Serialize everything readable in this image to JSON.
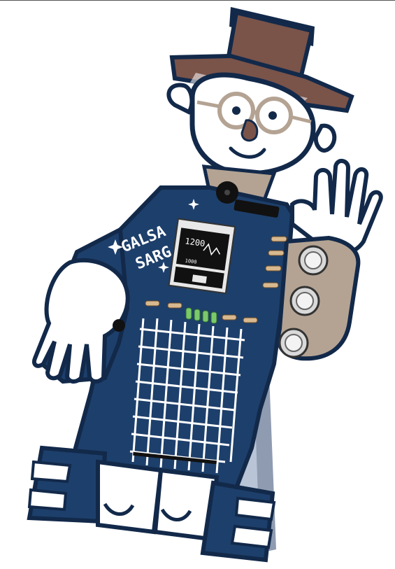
{
  "board": {
    "silkscreen_line1": "GALSA",
    "silkscreen_line2": "SARG",
    "oled_text": "1200",
    "oled_subtext": "1000"
  },
  "colors": {
    "pcb_blue": "#1d3f6b",
    "pcb_edge": "#12294a",
    "hat_brown": "#7a5349",
    "skin_tan": "#b4a393",
    "white": "#ffffff",
    "acrylic_stand": "#b9c4d6",
    "resistor_tan": "#d8b98f",
    "led_green": "#7bc96b"
  },
  "icons": [
    "sparkle-icon",
    "sparkle-icon",
    "sparkle-icon"
  ]
}
